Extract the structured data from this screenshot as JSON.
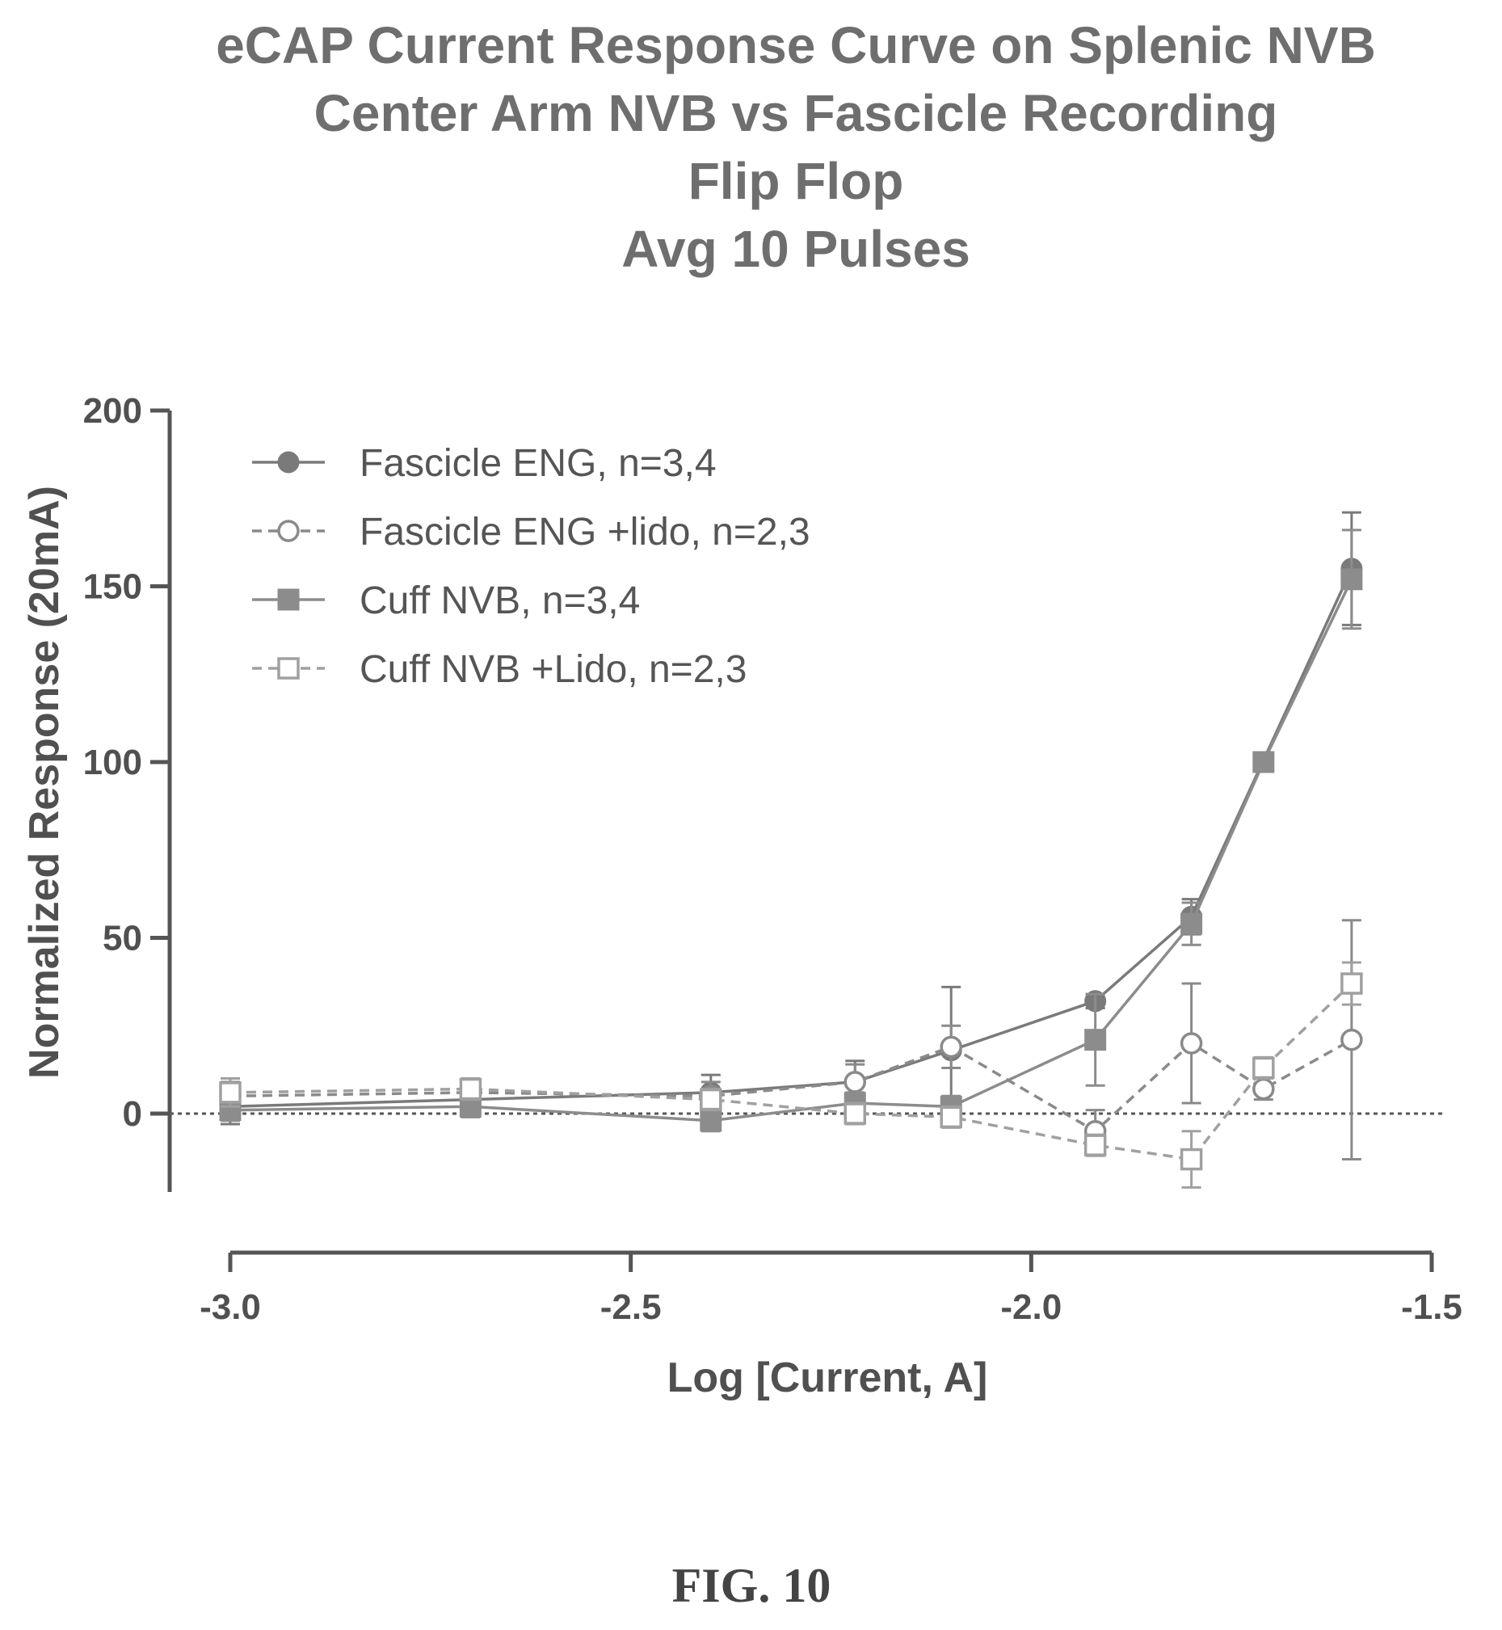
{
  "chart_data": {
    "type": "line",
    "title_lines": [
      "eCAP Current Response Curve on Splenic NVB",
      "Center Arm NVB vs Fascicle Recording",
      "Flip Flop",
      "Avg 10 Pulses"
    ],
    "xlabel": "Log [Current, A]",
    "ylabel": "Normalized Response (20mA)",
    "xlim": [
      -3.0,
      -1.5
    ],
    "ylim": [
      -25,
      200
    ],
    "xticks": [
      -3.0,
      -2.5,
      -2.0,
      -1.5
    ],
    "xtick_labels": [
      "-3.0",
      "-2.5",
      "-2.0",
      "-1.5"
    ],
    "yticks": [
      0,
      50,
      100,
      150,
      200
    ],
    "ytick_labels": [
      "0",
      "50",
      "100",
      "150",
      "200"
    ],
    "reference_line_y": 0,
    "grid": false,
    "legend_position": "top-left",
    "series": [
      {
        "name": "Fascicle ENG, n=3,4",
        "marker": "filled-circle",
        "dashed": false,
        "color": "#7a7a7a",
        "points": [
          {
            "x": -3.0,
            "y": 2,
            "err": 5
          },
          {
            "x": -2.7,
            "y": 4,
            "err": 4
          },
          {
            "x": -2.4,
            "y": 6,
            "err": 5
          },
          {
            "x": -2.22,
            "y": 9,
            "err": 6
          },
          {
            "x": -2.1,
            "y": 18,
            "err": 18
          },
          {
            "x": -1.92,
            "y": 32,
            "err": 2
          },
          {
            "x": -1.8,
            "y": 56,
            "err": 5
          },
          {
            "x": -1.6,
            "y": 155,
            "err": 16
          }
        ]
      },
      {
        "name": "Fascicle ENG +lido, n=2,3",
        "marker": "open-circle",
        "dashed": true,
        "color": "#8a8a8a",
        "points": [
          {
            "x": -3.0,
            "y": 5,
            "err": 4
          },
          {
            "x": -2.7,
            "y": 6,
            "err": 3
          },
          {
            "x": -2.4,
            "y": 5,
            "err": 4
          },
          {
            "x": -2.22,
            "y": 9,
            "err": 5
          },
          {
            "x": -2.1,
            "y": 19,
            "err": 6
          },
          {
            "x": -1.92,
            "y": -5,
            "err": 6
          },
          {
            "x": -1.8,
            "y": 20,
            "err": 17
          },
          {
            "x": -1.71,
            "y": 7,
            "err": 3
          },
          {
            "x": -1.6,
            "y": 21,
            "err": 34
          }
        ]
      },
      {
        "name": "Cuff NVB, n=3,4",
        "marker": "filled-square",
        "dashed": false,
        "color": "#8c8c8c",
        "points": [
          {
            "x": -3.0,
            "y": 1,
            "err": 3
          },
          {
            "x": -2.7,
            "y": 2,
            "err": 3
          },
          {
            "x": -2.4,
            "y": -2,
            "err": 3
          },
          {
            "x": -2.22,
            "y": 3,
            "err": 3
          },
          {
            "x": -2.1,
            "y": 2,
            "err": 3
          },
          {
            "x": -1.92,
            "y": 21,
            "err": 13
          },
          {
            "x": -1.8,
            "y": 54,
            "err": 6
          },
          {
            "x": -1.71,
            "y": 100,
            "err": 2
          },
          {
            "x": -1.6,
            "y": 152,
            "err": 14
          }
        ]
      },
      {
        "name": "Cuff NVB +Lido, n=2,3",
        "marker": "open-square",
        "dashed": true,
        "color": "#a0a0a0",
        "points": [
          {
            "x": -3.0,
            "y": 6,
            "err": 4
          },
          {
            "x": -2.7,
            "y": 7,
            "err": 3
          },
          {
            "x": -2.4,
            "y": 4,
            "err": 3
          },
          {
            "x": -2.22,
            "y": 0,
            "err": 3
          },
          {
            "x": -2.1,
            "y": -1,
            "err": 3
          },
          {
            "x": -1.92,
            "y": -9,
            "err": 3
          },
          {
            "x": -1.8,
            "y": -13,
            "err": 8
          },
          {
            "x": -1.71,
            "y": 13,
            "err": 3
          },
          {
            "x": -1.6,
            "y": 37,
            "err": 6
          }
        ]
      }
    ]
  },
  "figure_caption": "FIG. 10"
}
